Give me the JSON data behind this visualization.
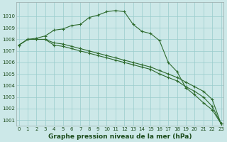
{
  "title": "Graphe pression niveau de la mer (hPa)",
  "bg_color": "#cce8e8",
  "grid_color": "#99cccc",
  "line_color": "#2d6a2d",
  "ylim": [
    1000.5,
    1011.2
  ],
  "xlim": [
    -0.3,
    23.3
  ],
  "yticks": [
    1001,
    1002,
    1003,
    1004,
    1005,
    1006,
    1007,
    1008,
    1009,
    1010
  ],
  "xticks": [
    0,
    1,
    2,
    3,
    4,
    5,
    6,
    7,
    8,
    9,
    10,
    11,
    12,
    13,
    14,
    15,
    16,
    17,
    18,
    19,
    20,
    21,
    22,
    23
  ],
  "series1": [
    1007.5,
    1008.0,
    1008.1,
    1008.3,
    1008.8,
    1008.9,
    1009.2,
    1009.3,
    1009.9,
    1010.1,
    1010.4,
    1010.5,
    1010.4,
    1009.3,
    1008.7,
    1008.5,
    1007.9,
    1006.0,
    1005.2,
    1003.8,
    1003.2,
    1002.5,
    1001.9,
    1000.7
  ],
  "series2": [
    1007.5,
    1008.0,
    1008.0,
    1008.0,
    1007.7,
    1007.6,
    1007.4,
    1007.2,
    1007.0,
    1006.8,
    1006.6,
    1006.4,
    1006.2,
    1006.0,
    1005.8,
    1005.6,
    1005.3,
    1005.0,
    1004.7,
    1004.3,
    1003.9,
    1003.5,
    1002.8,
    1000.7
  ],
  "series3": [
    1007.5,
    1008.0,
    1008.0,
    1008.0,
    1007.5,
    1007.4,
    1007.2,
    1007.0,
    1006.8,
    1006.6,
    1006.4,
    1006.2,
    1006.0,
    1005.8,
    1005.6,
    1005.4,
    1005.0,
    1004.7,
    1004.4,
    1003.9,
    1003.5,
    1003.0,
    1002.2,
    1000.7
  ],
  "title_fontsize": 6.5,
  "tick_fontsize": 5.0
}
